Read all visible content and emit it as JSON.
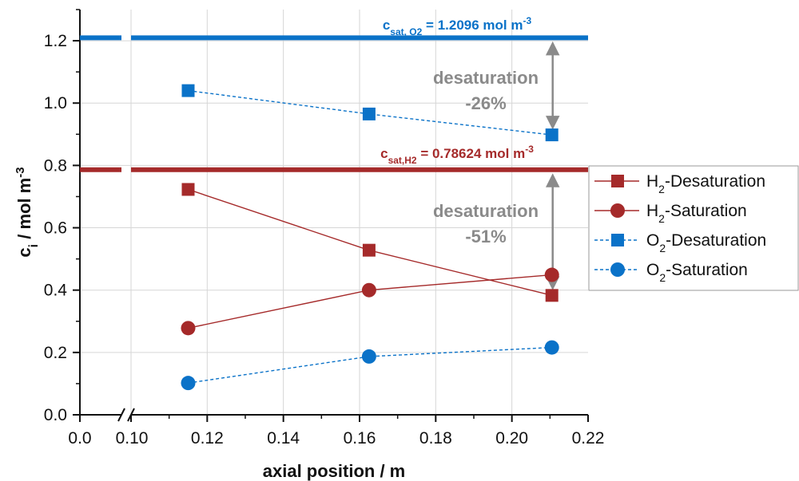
{
  "chart_data": {
    "type": "line",
    "xlabel": "axial position / m",
    "ylabel_main": "c",
    "ylabel_sub": "i",
    "ylabel_rest": " / mol m",
    "ylabel_sup": "-3",
    "xlim": [
      0.1,
      0.22
    ],
    "ylim": [
      0.0,
      1.3
    ],
    "x_break_ticks": [
      "0.0",
      "0.10"
    ],
    "x_ticks": [
      "0.12",
      "0.14",
      "0.16",
      "0.18",
      "0.20",
      "0.22"
    ],
    "y_ticks": [
      "0.0",
      "0.2",
      "0.4",
      "0.6",
      "0.8",
      "1.0",
      "1.2"
    ],
    "grid": true,
    "colors": {
      "h2": "#a52a2a",
      "o2": "#0a72c8",
      "arrow": "#8a8a8a"
    },
    "saturation_lines": [
      {
        "id": "o2",
        "value": 1.2096,
        "label_main": "c",
        "label_sub": "sat, O2",
        "label_rest": " = 1.2096 mol m",
        "label_sup": "-3"
      },
      {
        "id": "h2",
        "value": 0.78624,
        "label_main": "c",
        "label_sub": "sat,H2",
        "label_rest": " = 0.78624 mol m",
        "label_sup": "-3"
      }
    ],
    "annotations": [
      {
        "text": "desaturation",
        "pct": "-26%"
      },
      {
        "text": "desaturation",
        "pct": "-51%"
      }
    ],
    "series": [
      {
        "name_main": "H",
        "name_sub": "2",
        "name_rest": "-Desaturation",
        "color_key": "h2",
        "marker": "square",
        "dashed": false,
        "x": [
          0.115,
          0.1625,
          0.2105
        ],
        "y": [
          0.723,
          0.528,
          0.383
        ]
      },
      {
        "name_main": "H",
        "name_sub": "2",
        "name_rest": "-Saturation",
        "color_key": "h2",
        "marker": "circle",
        "dashed": false,
        "x": [
          0.115,
          0.1625,
          0.2105
        ],
        "y": [
          0.278,
          0.4,
          0.449
        ]
      },
      {
        "name_main": "O",
        "name_sub": "2",
        "name_rest": "-Desaturation",
        "color_key": "o2",
        "marker": "square",
        "dashed": true,
        "x": [
          0.115,
          0.1625,
          0.2105
        ],
        "y": [
          1.04,
          0.965,
          0.898
        ]
      },
      {
        "name_main": "O",
        "name_sub": "2",
        "name_rest": "-Saturation",
        "color_key": "o2",
        "marker": "circle",
        "dashed": true,
        "x": [
          0.115,
          0.1625,
          0.2105
        ],
        "y": [
          0.102,
          0.187,
          0.216
        ]
      }
    ]
  }
}
